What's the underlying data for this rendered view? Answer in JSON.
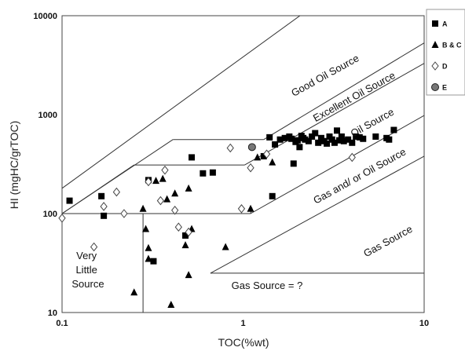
{
  "chart_data": {
    "type": "scatter",
    "xlabel": "TOC(%wt)",
    "ylabel": "HI (mgHC/grTOC)",
    "xscale": "log",
    "yscale": "log",
    "xlim": [
      0.1,
      10
    ],
    "ylim": [
      10,
      10000
    ],
    "xticks": [
      "0.1",
      "1",
      "10"
    ],
    "yticks": [
      "10",
      "100",
      "1000",
      "10000"
    ],
    "legend_position": "top-right",
    "series": [
      {
        "name": "A",
        "marker": "square",
        "color": "#000000",
        "points": [
          [
            0.11,
            135
          ],
          [
            0.165,
            150
          ],
          [
            0.17,
            95
          ],
          [
            0.3,
            218
          ],
          [
            0.32,
            33
          ],
          [
            0.48,
            60
          ],
          [
            0.52,
            370
          ],
          [
            0.6,
            255
          ],
          [
            0.68,
            260
          ],
          [
            1.3,
            380
          ],
          [
            1.4,
            590
          ],
          [
            1.45,
            150
          ],
          [
            1.5,
            500
          ],
          [
            1.6,
            560
          ],
          [
            1.7,
            580
          ],
          [
            1.8,
            600
          ],
          [
            1.85,
            570
          ],
          [
            1.9,
            320
          ],
          [
            1.95,
            530
          ],
          [
            2.0,
            550
          ],
          [
            2.05,
            470
          ],
          [
            2.1,
            610
          ],
          [
            2.15,
            580
          ],
          [
            2.2,
            560
          ],
          [
            2.3,
            540
          ],
          [
            2.4,
            600
          ],
          [
            2.5,
            650
          ],
          [
            2.6,
            520
          ],
          [
            2.7,
            580
          ],
          [
            2.8,
            540
          ],
          [
            2.9,
            510
          ],
          [
            3.0,
            600
          ],
          [
            3.1,
            560
          ],
          [
            3.2,
            520
          ],
          [
            3.3,
            690
          ],
          [
            3.4,
            550
          ],
          [
            3.5,
            600
          ],
          [
            3.6,
            540
          ],
          [
            3.8,
            560
          ],
          [
            4.0,
            520
          ],
          [
            4.2,
            600
          ],
          [
            4.4,
            590
          ],
          [
            4.6,
            570
          ],
          [
            5.4,
            600
          ],
          [
            6.2,
            580
          ],
          [
            6.4,
            560
          ],
          [
            6.8,
            700
          ]
        ]
      },
      {
        "name": "B & C",
        "marker": "triangle",
        "color": "#000000",
        "points": [
          [
            0.25,
            16
          ],
          [
            0.28,
            112
          ],
          [
            0.29,
            70
          ],
          [
            0.3,
            45
          ],
          [
            0.3,
            35
          ],
          [
            0.33,
            215
          ],
          [
            0.36,
            225
          ],
          [
            0.38,
            140
          ],
          [
            0.4,
            12
          ],
          [
            0.42,
            160
          ],
          [
            0.48,
            48
          ],
          [
            0.5,
            180
          ],
          [
            0.5,
            24
          ],
          [
            0.52,
            70
          ],
          [
            0.8,
            46
          ],
          [
            1.1,
            112
          ],
          [
            1.2,
            370
          ],
          [
            1.45,
            330
          ]
        ]
      },
      {
        "name": "D",
        "marker": "diamond",
        "color": "#ffffff",
        "points": [
          [
            0.1,
            90
          ],
          [
            0.15,
            46
          ],
          [
            0.17,
            118
          ],
          [
            0.2,
            165
          ],
          [
            0.22,
            100
          ],
          [
            0.3,
            210
          ],
          [
            0.35,
            135
          ],
          [
            0.37,
            275
          ],
          [
            0.42,
            108
          ],
          [
            0.44,
            73
          ],
          [
            0.5,
            65
          ],
          [
            0.85,
            460
          ],
          [
            0.98,
            112
          ],
          [
            1.1,
            290
          ],
          [
            1.35,
            400
          ],
          [
            4.0,
            370
          ]
        ]
      },
      {
        "name": "E",
        "marker": "circle",
        "color": "#777777",
        "points": [
          [
            1.12,
            470
          ]
        ]
      }
    ],
    "annotations": [
      "Good Oil Source",
      "Excellent Oil Source",
      "Oil Source",
      "Gas and/ or Oil Source",
      "Gas Source",
      "Gas Source = ?",
      "Very Little Source"
    ]
  }
}
